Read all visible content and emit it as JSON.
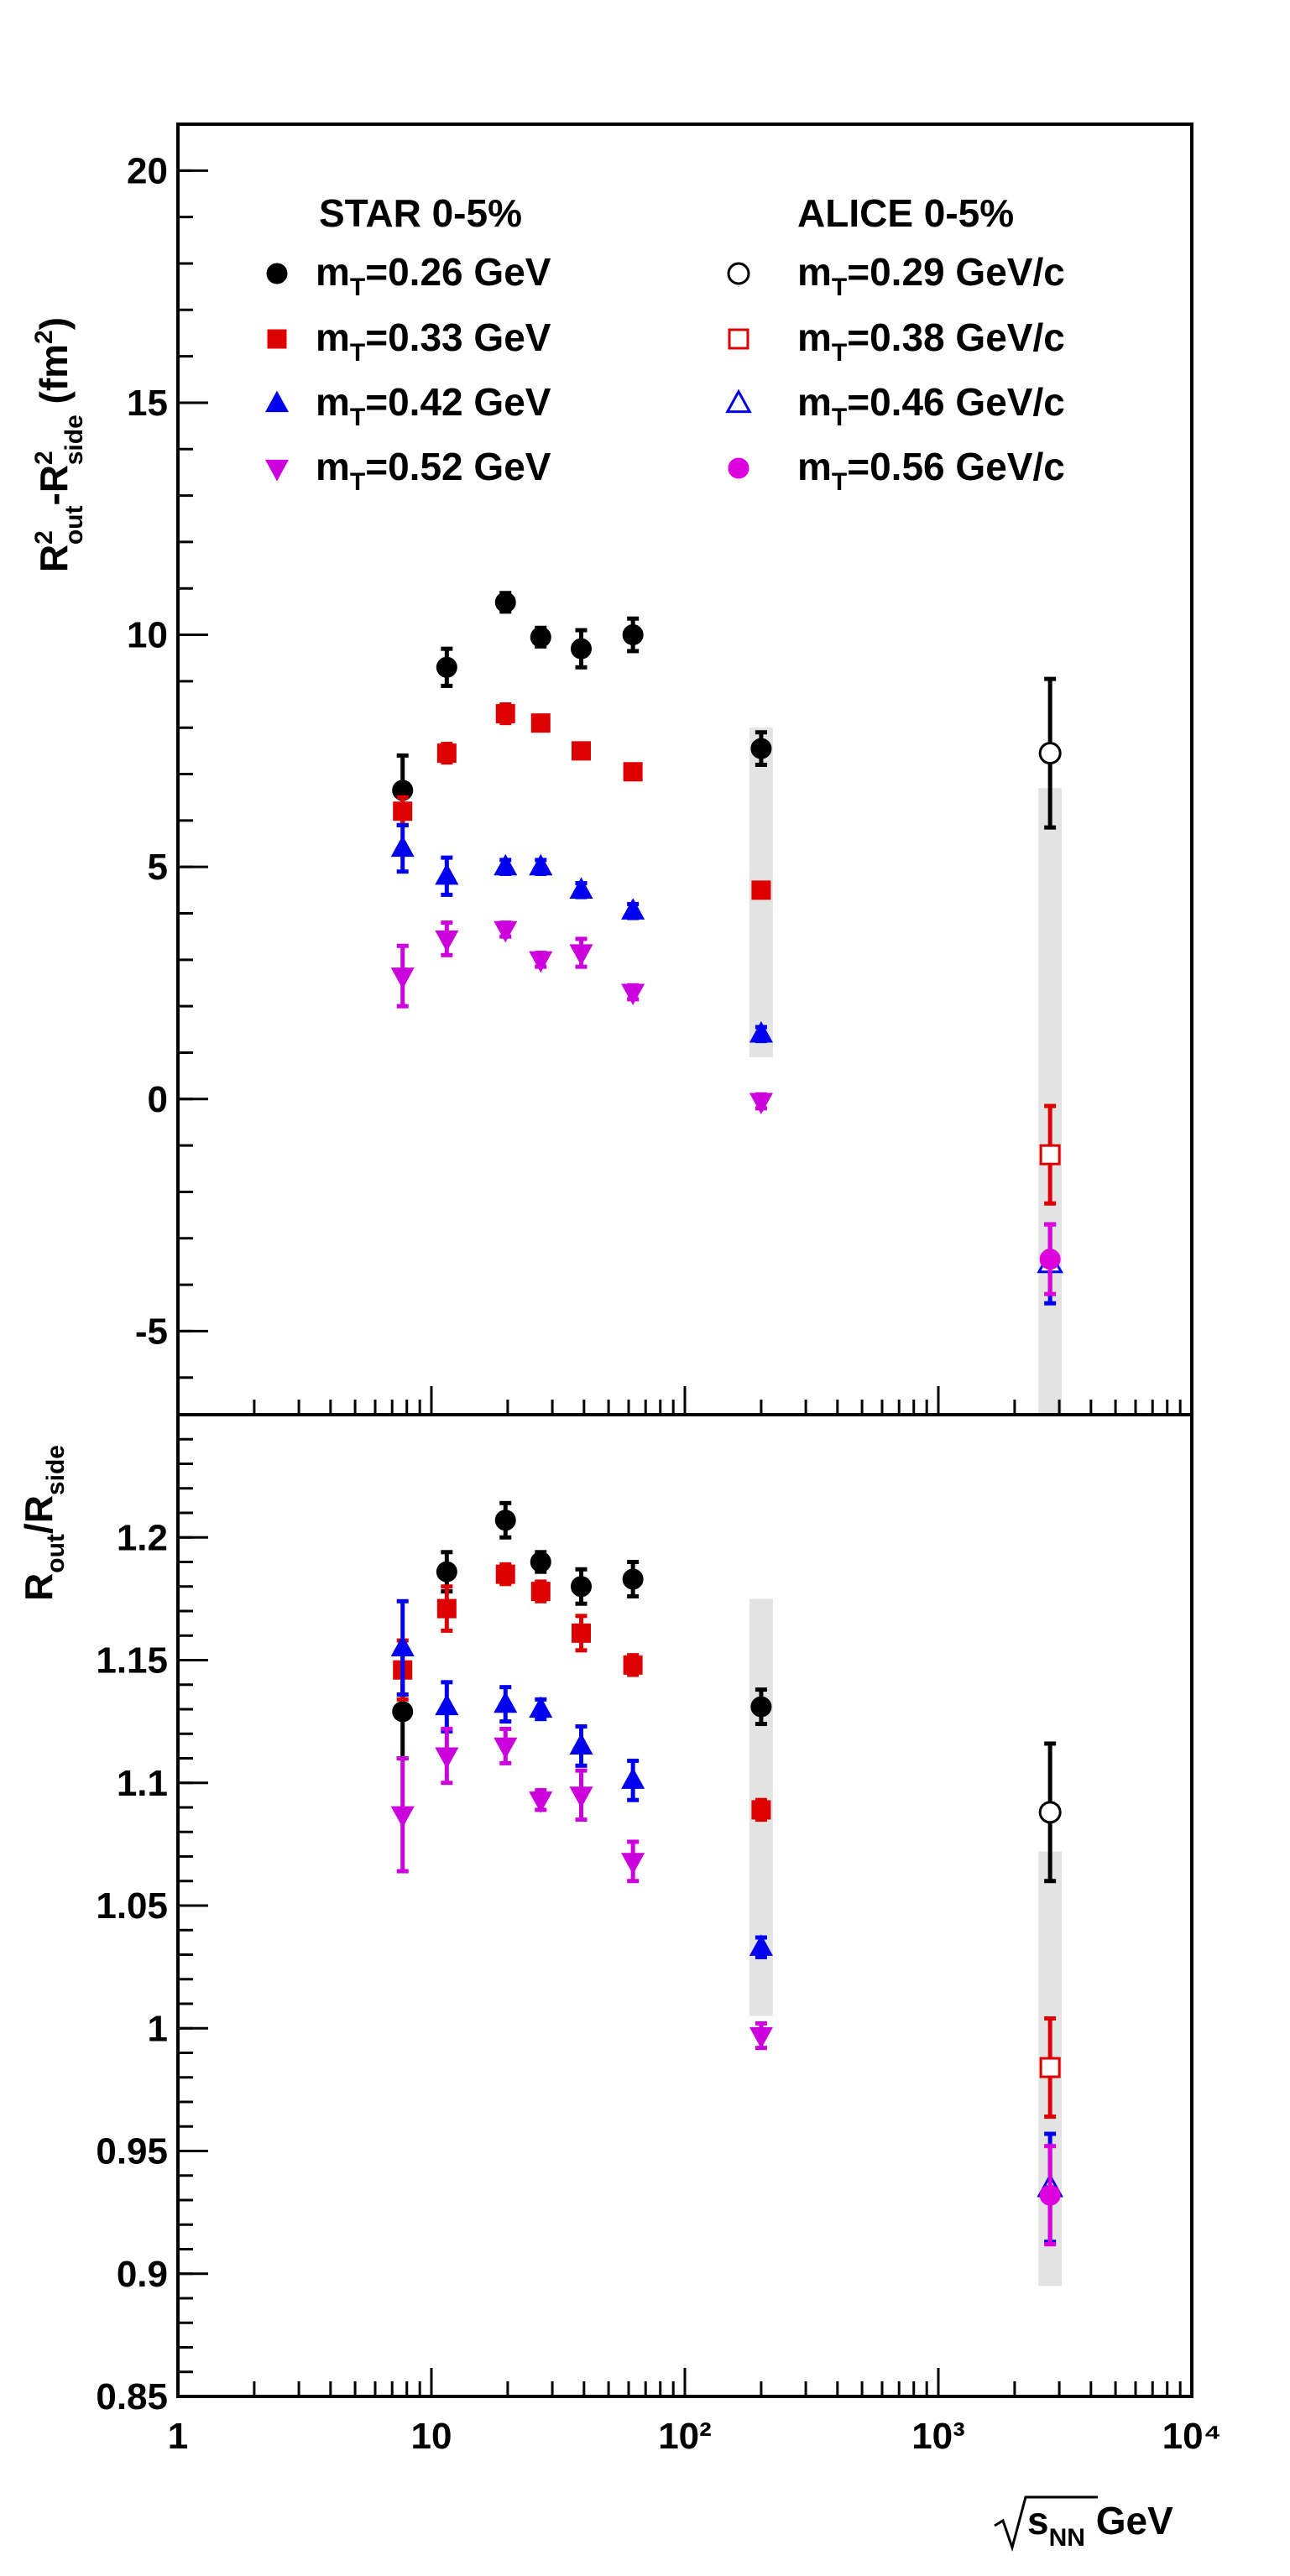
{
  "chart_data": [
    {
      "type": "scatter",
      "panel": "top",
      "ylabel": "R²out-R²side (fm²)",
      "x_scale": "log",
      "xlim": [
        1,
        10000
      ],
      "ylim": [
        -6.8,
        21
      ],
      "y_ticks": [
        20,
        15,
        10,
        5,
        0,
        -5
      ],
      "y_tick_labels": [
        "20",
        "15",
        "10",
        "5",
        "0",
        "-5"
      ],
      "grid": false,
      "legend": {
        "placement": "top",
        "headers": [
          "STAR 0-5%",
          "ALICE 0-5%"
        ],
        "entries": [
          {
            "label": "mT=0.26 GeV",
            "series": "star_026"
          },
          {
            "label": "mT=0.33 GeV",
            "series": "star_033"
          },
          {
            "label": "mT=0.42 GeV",
            "series": "star_042"
          },
          {
            "label": "mT=0.52 GeV",
            "series": "star_052"
          },
          {
            "label": "mT=0.29 GeV/c",
            "series": "alice_029"
          },
          {
            "label": "mT=0.38 GeV/c",
            "series": "alice_038"
          },
          {
            "label": "mT=0.46 GeV/c",
            "series": "alice_046"
          },
          {
            "label": "mT=0.56 GeV/c",
            "series": "alice_056"
          }
        ]
      },
      "systematic_bands": [
        {
          "x": 200,
          "y_low": 0.9,
          "y_high": 8.0
        },
        {
          "x": 2760,
          "y_low": -7.0,
          "y_high": 6.7
        }
      ],
      "series": [
        {
          "id": "star_026",
          "name": "mT=0.26 GeV",
          "marker": "circle",
          "filled": true,
          "color": "#000000",
          "points": [
            [
              7.7,
              6.65,
              0.75
            ],
            [
              11.5,
              9.3,
              0.4
            ],
            [
              19.6,
              10.7,
              0.2
            ],
            [
              27,
              9.95,
              0.2
            ],
            [
              39,
              9.7,
              0.4
            ],
            [
              62.4,
              10.0,
              0.35
            ],
            [
              200,
              7.55,
              0.35
            ]
          ]
        },
        {
          "id": "star_033",
          "name": "mT=0.33 GeV",
          "marker": "square",
          "filled": true,
          "color": "#dd0000",
          "points": [
            [
              7.7,
              6.2,
              0.3
            ],
            [
              11.5,
              7.45,
              0.2
            ],
            [
              19.6,
              8.3,
              0.2
            ],
            [
              27,
              8.1,
              0.15
            ],
            [
              39,
              7.5,
              0.15
            ],
            [
              62.4,
              7.05,
              0.15
            ],
            [
              200,
              4.5,
              0.15
            ]
          ]
        },
        {
          "id": "star_042",
          "name": "mT=0.42 GeV",
          "marker": "triangle-up",
          "filled": true,
          "color": "#0000ee",
          "points": [
            [
              7.7,
              5.4,
              0.5
            ],
            [
              11.5,
              4.8,
              0.4
            ],
            [
              19.6,
              5.0,
              0.15
            ],
            [
              27,
              5.0,
              0.15
            ],
            [
              39,
              4.5,
              0.15
            ],
            [
              62.4,
              4.05,
              0.15
            ],
            [
              200,
              1.4,
              0.15
            ]
          ]
        },
        {
          "id": "star_052",
          "name": "mT=0.52 GeV",
          "marker": "triangle-down",
          "filled": true,
          "color": "#cc00dd",
          "points": [
            [
              7.7,
              2.65,
              0.65
            ],
            [
              11.5,
              3.45,
              0.35
            ],
            [
              19.6,
              3.65,
              0.15
            ],
            [
              27,
              3.0,
              0.15
            ],
            [
              39,
              3.15,
              0.3
            ],
            [
              62.4,
              2.3,
              0.15
            ],
            [
              200,
              -0.05,
              0.15
            ]
          ]
        },
        {
          "id": "alice_029",
          "name": "mT=0.29 GeV/c",
          "marker": "circle",
          "filled": false,
          "color": "#000000",
          "points": [
            [
              2760,
              7.45,
              1.6
            ]
          ]
        },
        {
          "id": "alice_038",
          "name": "mT=0.38 GeV/c",
          "marker": "square",
          "filled": false,
          "color": "#dd0000",
          "points": [
            [
              2760,
              -1.2,
              1.05
            ]
          ]
        },
        {
          "id": "alice_046",
          "name": "mT=0.46 GeV/c",
          "marker": "triangle-up",
          "filled": false,
          "color": "#0000ee",
          "points": [
            [
              2760,
              -3.55,
              0.85
            ]
          ]
        },
        {
          "id": "alice_056",
          "name": "mT=0.56 GeV/c",
          "marker": "circle",
          "filled": true,
          "color": "#dd00dd",
          "points": [
            [
              2760,
              -3.45,
              0.75
            ]
          ]
        }
      ]
    },
    {
      "type": "scatter",
      "panel": "bottom",
      "ylabel": "Rout/Rside",
      "xlabel": "√sNN GeV",
      "x_scale": "log",
      "xlim": [
        1,
        10000
      ],
      "ylim": [
        0.85,
        1.25
      ],
      "x_ticks": [
        1,
        10,
        100,
        1000,
        10000
      ],
      "x_tick_labels": [
        "1",
        "10",
        "10²",
        "10³",
        "10⁴"
      ],
      "y_ticks": [
        1.2,
        1.15,
        1.1,
        1.05,
        1,
        0.95,
        0.9,
        0.85
      ],
      "y_tick_labels": [
        "1.2",
        "1.15",
        "1.1",
        "1.05",
        "1",
        "0.95",
        "0.9",
        "0.85"
      ],
      "grid": false,
      "systematic_bands": [
        {
          "x": 200,
          "y_low": 1.005,
          "y_high": 1.175
        },
        {
          "x": 2760,
          "y_low": 0.895,
          "y_high": 1.072
        }
      ],
      "series": [
        {
          "id": "star_026",
          "name": "mT=0.26 GeV",
          "marker": "circle",
          "filled": true,
          "color": "#000000",
          "points": [
            [
              7.7,
              1.129,
              0.019
            ],
            [
              11.5,
              1.186,
              0.008
            ],
            [
              19.6,
              1.207,
              0.007
            ],
            [
              27,
              1.19,
              0.004
            ],
            [
              39,
              1.18,
              0.007
            ],
            [
              62.4,
              1.183,
              0.007
            ],
            [
              200,
              1.131,
              0.007
            ]
          ]
        },
        {
          "id": "star_033",
          "name": "mT=0.33 GeV",
          "marker": "square",
          "filled": true,
          "color": "#dd0000",
          "points": [
            [
              7.7,
              1.146,
              0.012
            ],
            [
              11.5,
              1.171,
              0.009
            ],
            [
              19.6,
              1.185,
              0.004
            ],
            [
              27,
              1.178,
              0.004
            ],
            [
              39,
              1.161,
              0.007
            ],
            [
              62.4,
              1.148,
              0.004
            ],
            [
              200,
              1.089,
              0.004
            ]
          ]
        },
        {
          "id": "star_042",
          "name": "mT=0.42 GeV",
          "marker": "triangle-up",
          "filled": true,
          "color": "#0000ee",
          "points": [
            [
              7.7,
              1.155,
              0.019
            ],
            [
              11.5,
              1.131,
              0.01
            ],
            [
              19.6,
              1.132,
              0.007
            ],
            [
              27,
              1.13,
              0.004
            ],
            [
              39,
              1.115,
              0.008
            ],
            [
              62.4,
              1.101,
              0.008
            ],
            [
              200,
              1.033,
              0.004
            ]
          ]
        },
        {
          "id": "star_052",
          "name": "mT=0.52 GeV",
          "marker": "triangle-down",
          "filled": true,
          "color": "#cc00dd",
          "points": [
            [
              7.7,
              1.087,
              0.023
            ],
            [
              11.5,
              1.111,
              0.011
            ],
            [
              19.6,
              1.115,
              0.007
            ],
            [
              27,
              1.093,
              0.004
            ],
            [
              39,
              1.095,
              0.01
            ],
            [
              62.4,
              1.068,
              0.008
            ],
            [
              200,
              0.997,
              0.005
            ]
          ]
        },
        {
          "id": "alice_029",
          "name": "mT=0.29 GeV/c",
          "marker": "circle",
          "filled": false,
          "color": "#000000",
          "points": [
            [
              2760,
              1.088,
              0.028
            ]
          ]
        },
        {
          "id": "alice_038",
          "name": "mT=0.38 GeV/c",
          "marker": "square",
          "filled": false,
          "color": "#dd0000",
          "points": [
            [
              2760,
              0.984,
              0.02
            ]
          ]
        },
        {
          "id": "alice_046",
          "name": "mT=0.46 GeV/c",
          "marker": "triangle-up",
          "filled": false,
          "color": "#0000ee",
          "points": [
            [
              2760,
              0.935,
              0.022
            ]
          ]
        },
        {
          "id": "alice_056",
          "name": "mT=0.56 GeV/c",
          "marker": "circle",
          "filled": true,
          "color": "#dd00dd",
          "points": [
            [
              2760,
              0.932,
              0.02
            ]
          ]
        }
      ]
    }
  ]
}
